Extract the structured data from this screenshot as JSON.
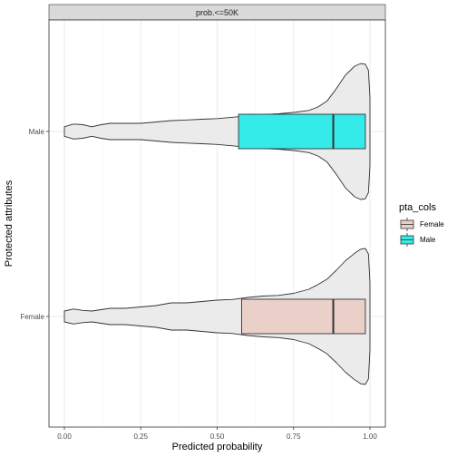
{
  "chart_data": {
    "type": "violin-box",
    "facet_label": "prob.<=50K",
    "xlabel": "Predicted probability",
    "ylabel": "Protected attributes",
    "xlim": [
      0.0,
      1.0
    ],
    "x_ticks": [
      0.0,
      0.25,
      0.5,
      0.75,
      1.0
    ],
    "x_tick_labels": [
      "0.00",
      "0.25",
      "0.50",
      "0.75",
      "1.00"
    ],
    "categories": [
      "Male",
      "Female"
    ],
    "legend": {
      "title": "pta_cols",
      "position": "right",
      "entries": [
        {
          "label": "Female",
          "color": "#ead0c8"
        },
        {
          "label": "Male",
          "color": "#35ebe9"
        }
      ]
    },
    "violin_fill": "#ebebeb",
    "series": [
      {
        "name": "Male",
        "color": "#35ebe9",
        "box": {
          "q1": 0.57,
          "median": 0.88,
          "q3": 0.985
        },
        "violin": {
          "x": [
            0.0,
            0.03,
            0.06,
            0.09,
            0.12,
            0.15,
            0.2,
            0.25,
            0.3,
            0.35,
            0.4,
            0.45,
            0.5,
            0.55,
            0.6,
            0.65,
            0.7,
            0.75,
            0.8,
            0.83,
            0.86,
            0.89,
            0.92,
            0.95,
            0.97,
            0.985,
            0.995,
            1.0
          ],
          "density": [
            0.07,
            0.11,
            0.1,
            0.07,
            0.1,
            0.12,
            0.12,
            0.12,
            0.14,
            0.16,
            0.17,
            0.18,
            0.19,
            0.21,
            0.23,
            0.25,
            0.26,
            0.28,
            0.31,
            0.36,
            0.45,
            0.63,
            0.83,
            0.96,
            1.0,
            0.99,
            0.9,
            0.5
          ]
        }
      },
      {
        "name": "Female",
        "color": "#ead0c8",
        "box": {
          "q1": 0.58,
          "median": 0.88,
          "q3": 0.985
        },
        "violin": {
          "x": [
            0.0,
            0.03,
            0.06,
            0.09,
            0.12,
            0.15,
            0.2,
            0.25,
            0.3,
            0.35,
            0.4,
            0.45,
            0.5,
            0.55,
            0.6,
            0.65,
            0.7,
            0.75,
            0.8,
            0.83,
            0.86,
            0.89,
            0.92,
            0.95,
            0.97,
            0.985,
            0.995,
            1.0
          ],
          "density": [
            0.08,
            0.11,
            0.09,
            0.08,
            0.1,
            0.12,
            0.12,
            0.14,
            0.16,
            0.2,
            0.2,
            0.22,
            0.24,
            0.25,
            0.28,
            0.3,
            0.31,
            0.34,
            0.4,
            0.47,
            0.55,
            0.68,
            0.82,
            0.93,
            0.99,
            1.0,
            0.92,
            0.5
          ]
        }
      }
    ]
  }
}
